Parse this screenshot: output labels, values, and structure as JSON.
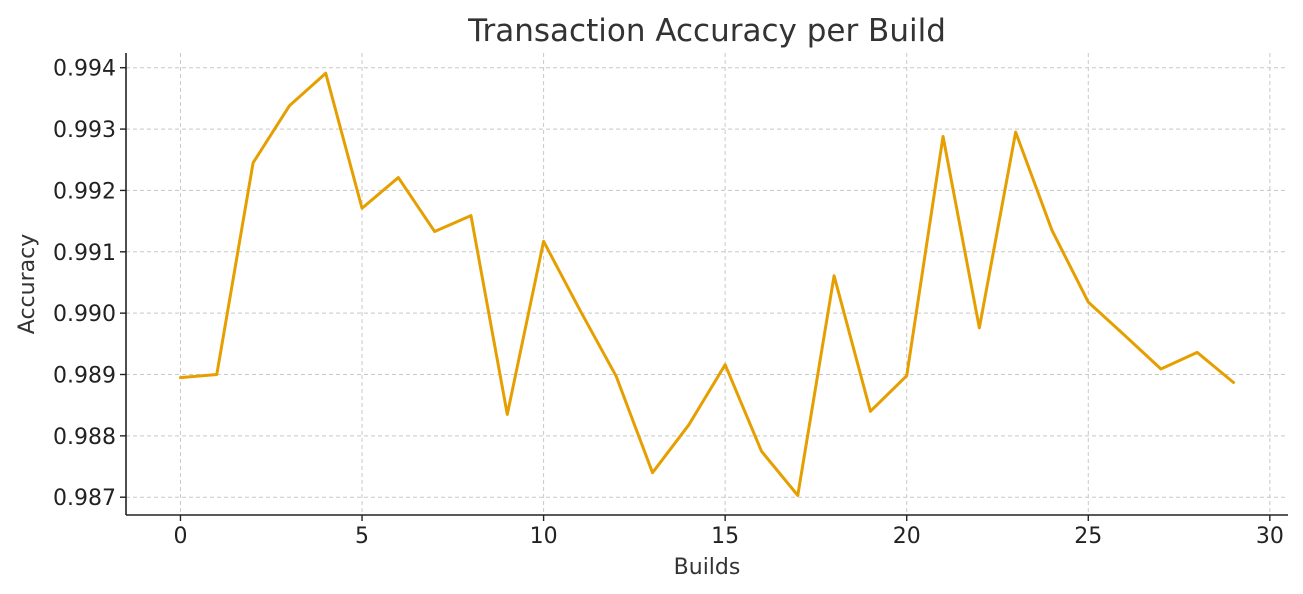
{
  "chart_data": {
    "type": "line",
    "title": "Transaction Accuracy per Build",
    "xlabel": "Builds",
    "ylabel": "Accuracy",
    "x": [
      0,
      1,
      2,
      3,
      4,
      5,
      6,
      7,
      8,
      9,
      10,
      11,
      12,
      13,
      14,
      15,
      16,
      17,
      18,
      19,
      20,
      21,
      22,
      23,
      24,
      25,
      26,
      27,
      28,
      29
    ],
    "series": [
      {
        "values": [
          0.98895,
          0.989,
          0.99245,
          0.99338,
          0.99391,
          0.99171,
          0.99221,
          0.99133,
          0.99159,
          0.98835,
          0.99117,
          0.99005,
          0.98897,
          0.9874,
          0.98818,
          0.98916,
          0.98775,
          0.98703,
          0.99061,
          0.9884,
          0.98898,
          0.99288,
          0.98976,
          0.99295,
          0.99135,
          0.99018,
          0.98964,
          0.98909,
          0.98936,
          0.98887
        ],
        "color": "#E69F00"
      }
    ],
    "xlim": [
      -1.5,
      30.5
    ],
    "ylim": [
      0.98671,
      0.99424
    ],
    "xticks": [
      0,
      5,
      10,
      15,
      20,
      25,
      30
    ],
    "yticks": [
      0.987,
      0.988,
      0.989,
      0.99,
      0.991,
      0.992,
      0.993,
      0.994
    ],
    "xtick_labels": [
      "0",
      "5",
      "10",
      "15",
      "20",
      "25",
      "30"
    ],
    "ytick_labels": [
      "0.987",
      "0.988",
      "0.989",
      "0.990",
      "0.991",
      "0.992",
      "0.993",
      "0.994"
    ],
    "grid": true
  }
}
